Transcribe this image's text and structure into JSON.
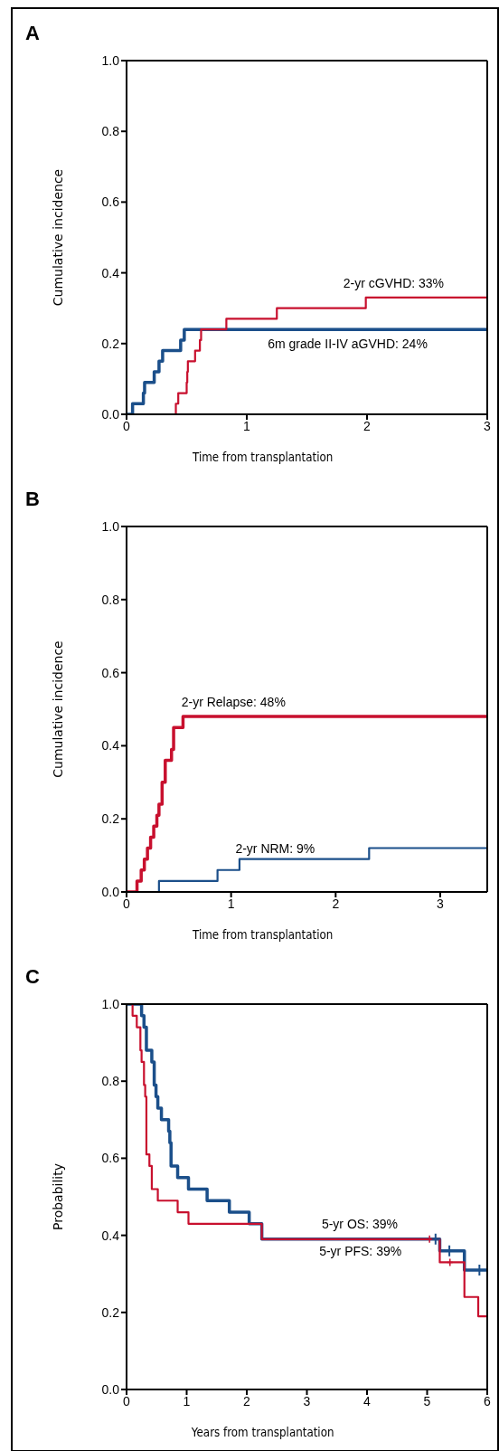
{
  "chart_data": [
    {
      "type": "step",
      "title": "A",
      "xlabel": "Time from transplantation",
      "ylabel": "Cumulative incidence",
      "xlim": [
        0,
        3
      ],
      "xticks": [
        0,
        1,
        2,
        3
      ],
      "ylim": [
        0,
        1
      ],
      "yticks": [
        {
          "value": 0,
          "label": "0.0"
        },
        {
          "value": 0.2,
          "label": "0.2"
        },
        {
          "value": 0.4,
          "label": "0.4"
        },
        {
          "value": 0.6,
          "label": "0.6"
        },
        {
          "value": 0.8,
          "label": "0.8"
        },
        {
          "value": 1,
          "label": "1.0"
        }
      ],
      "marker": "none",
      "series": [
        {
          "color": "#1b4f8a",
          "x": [
            0,
            0.05,
            0.14,
            0.15,
            0.23,
            0.27,
            0.3,
            0.45,
            0.48,
            3
          ],
          "values": [
            0,
            0.03,
            0.06,
            0.09,
            0.12,
            0.15,
            0.18,
            0.21,
            0.24,
            0.24
          ]
        },
        {
          "color": "#c8102e",
          "x": [
            0,
            0.41,
            0.43,
            0.5,
            0.505,
            0.51,
            0.57,
            0.61,
            0.62,
            0.83,
            1.25,
            1.99,
            3
          ],
          "values": [
            0,
            0.03,
            0.06,
            0.09,
            0.12,
            0.15,
            0.18,
            0.21,
            0.24,
            0.27,
            0.3,
            0.33,
            0.33
          ]
        }
      ],
      "annotations": [
        "2-yr cGVHD: 33%",
        "6m grade II-IV aGVHD: 24%"
      ]
    },
    {
      "type": "step",
      "title": "B",
      "xlabel": "Time from transplantation",
      "ylabel": "Cumulative incidence",
      "xlim": [
        0,
        3.45
      ],
      "xticks": [
        0,
        1,
        2,
        3
      ],
      "ylim": [
        0,
        1
      ],
      "yticks": [
        {
          "value": 0,
          "label": "0.0"
        },
        {
          "value": 0.2,
          "label": "0.2"
        },
        {
          "value": 0.4,
          "label": "0.4"
        },
        {
          "value": 0.6,
          "label": "0.6"
        },
        {
          "value": 0.8,
          "label": "0.8"
        },
        {
          "value": 1,
          "label": "1.0"
        }
      ],
      "marker": "none",
      "series": [
        {
          "color": "#c8102e",
          "x": [
            0,
            0.1,
            0.14,
            0.17,
            0.2,
            0.23,
            0.26,
            0.29,
            0.31,
            0.34,
            0.37,
            0.43,
            0.45,
            0.54,
            3.45
          ],
          "values": [
            0,
            0.03,
            0.06,
            0.09,
            0.12,
            0.15,
            0.18,
            0.21,
            0.24,
            0.3,
            0.36,
            0.39,
            0.45,
            0.48,
            0.48
          ]
        },
        {
          "color": "#1b4f8a",
          "x": [
            0,
            0.31,
            0.87,
            1.08,
            2.32,
            3.45
          ],
          "values": [
            0,
            0.03,
            0.06,
            0.09,
            0.12,
            0.12
          ]
        }
      ],
      "annotations": [
        "2-yr Relapse: 48%",
        "2-yr NRM: 9%"
      ]
    },
    {
      "type": "step",
      "title": "C",
      "xlabel": "Years from transplantation",
      "ylabel": "Probability",
      "xlim": [
        0,
        6
      ],
      "xticks": [
        0,
        1,
        2,
        3,
        4,
        5,
        6
      ],
      "ylim": [
        0,
        1
      ],
      "yticks": [
        {
          "value": 0,
          "label": "0.0"
        },
        {
          "value": 0.2,
          "label": "0.2"
        },
        {
          "value": 0.4,
          "label": "0.4"
        },
        {
          "value": 0.6,
          "label": "0.6"
        },
        {
          "value": 0.8,
          "label": "0.8"
        },
        {
          "value": 1,
          "label": "1.0"
        }
      ],
      "marker": "none",
      "series": [
        {
          "color": "#1b4f8a",
          "x": [
            0,
            0.25,
            0.29,
            0.33,
            0.42,
            0.46,
            0.49,
            0.52,
            0.58,
            0.7,
            0.72,
            0.74,
            0.85,
            1.03,
            1.34,
            1.71,
            2.04,
            2.25,
            5.21,
            5.62,
            6
          ],
          "values": [
            1,
            0.97,
            0.94,
            0.88,
            0.85,
            0.79,
            0.76,
            0.73,
            0.7,
            0.67,
            0.64,
            0.58,
            0.55,
            0.52,
            0.49,
            0.46,
            0.43,
            0.39,
            0.36,
            0.31,
            0.31
          ]
        },
        {
          "color": "#c8102e",
          "x": [
            0,
            0.1,
            0.17,
            0.23,
            0.25,
            0.29,
            0.31,
            0.33,
            0.38,
            0.42,
            0.52,
            0.85,
            1.03,
            2.25,
            5.21,
            5.62,
            5.85,
            6
          ],
          "values": [
            1,
            0.97,
            0.94,
            0.88,
            0.85,
            0.79,
            0.76,
            0.61,
            0.58,
            0.52,
            0.49,
            0.46,
            0.43,
            0.39,
            0.33,
            0.24,
            0.19,
            0.19
          ]
        },
        {
          "type": "scatter",
          "marker": "cross",
          "color": "#1b4f8a",
          "x": [
            5.14,
            5.37,
            5.87
          ],
          "values": [
            0.39,
            0.36,
            0.31
          ]
        },
        {
          "type": "scatter",
          "marker": "cross",
          "color": "#c8102e",
          "x": [
            5.04,
            5.38
          ],
          "values": [
            0.39,
            0.33
          ]
        }
      ],
      "annotations": [
        "5-yr OS: 39%",
        "5-yr PFS: 39%"
      ]
    }
  ]
}
